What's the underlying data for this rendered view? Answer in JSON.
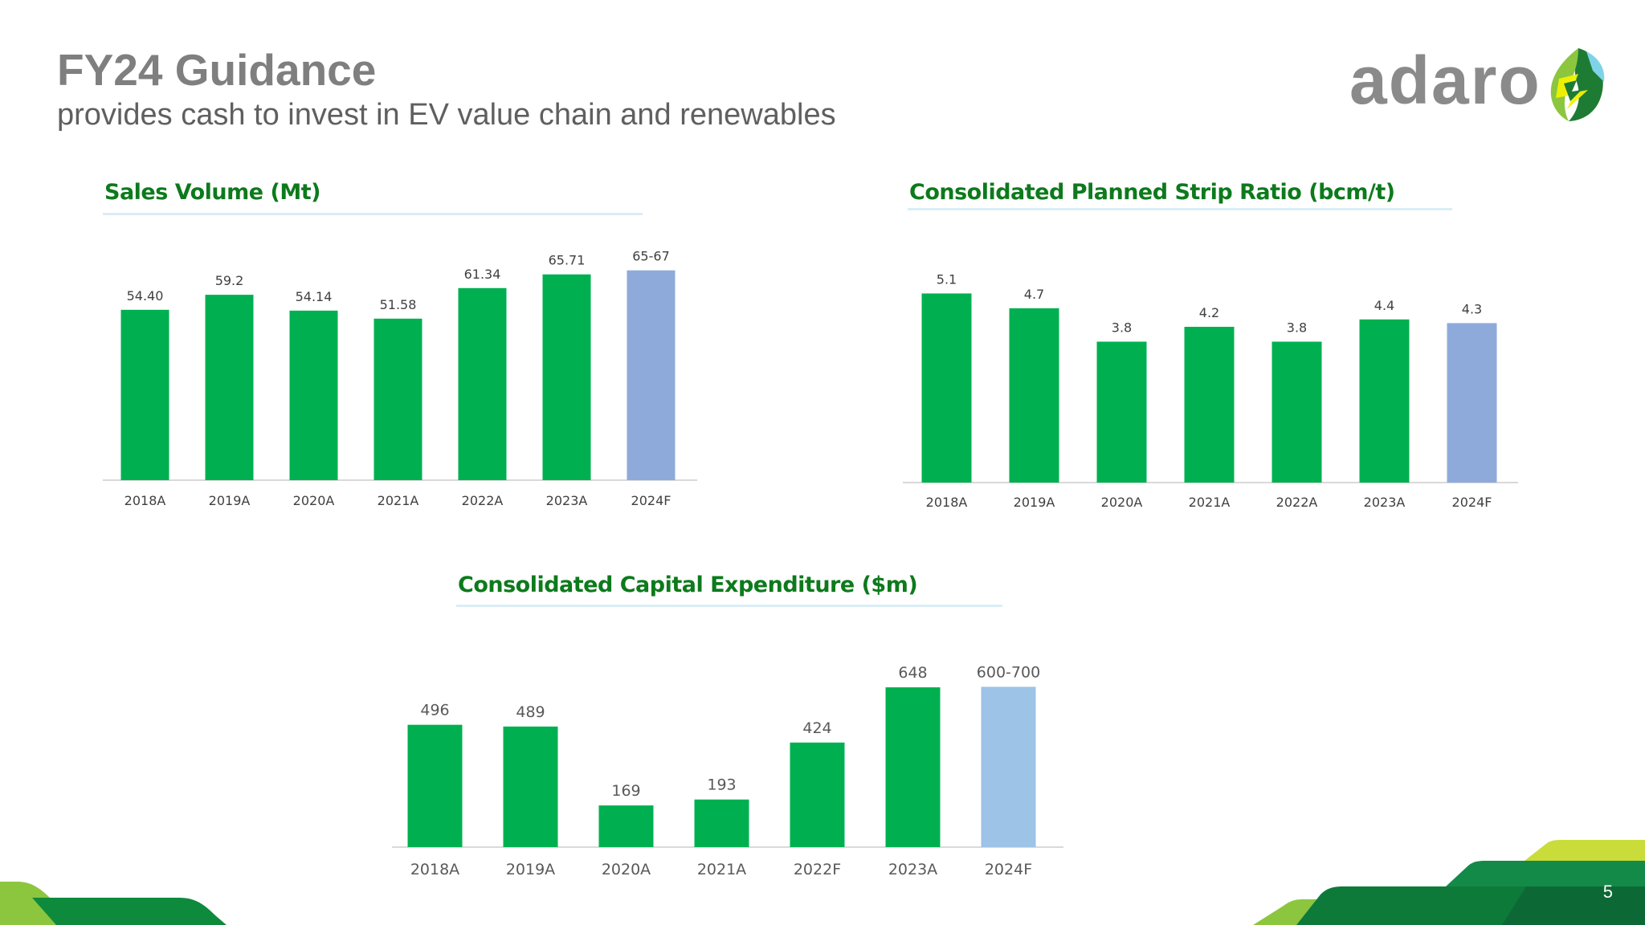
{
  "header": {
    "title": "FY24 Guidance",
    "subtitle": "provides cash to invest in EV value chain and renewables"
  },
  "logo": {
    "text": "adaro",
    "mark_icon": "adaro-leaf-logo-icon"
  },
  "colors": {
    "actual": "#00b050",
    "forecast_sales_strip": "#8eaadb",
    "forecast_capex": "#9dc3e6",
    "title_green": "#0d7a1c"
  },
  "page_number": "5",
  "chart_data": [
    {
      "id": "sales",
      "type": "bar",
      "title": "Sales Volume (Mt)",
      "categories": [
        "2018A",
        "2019A",
        "2020A",
        "2021A",
        "2022A",
        "2023A",
        "2024F"
      ],
      "values": [
        54.4,
        59.2,
        54.14,
        51.58,
        61.34,
        65.71,
        67
      ],
      "value_labels": [
        "54.40",
        "59.2",
        "54.14",
        "51.58",
        "61.34",
        "65.71",
        "65-67"
      ],
      "forecast": [
        false,
        false,
        false,
        false,
        false,
        false,
        true
      ],
      "ylim": [
        0,
        70
      ],
      "xlabel": "",
      "ylabel": "",
      "grid": false,
      "legend": "none"
    },
    {
      "id": "strip",
      "type": "bar",
      "title": "Consolidated Planned Strip Ratio (bcm/t)",
      "categories": [
        "2018A",
        "2019A",
        "2020A",
        "2021A",
        "2022A",
        "2023A",
        "2024F"
      ],
      "values": [
        5.1,
        4.7,
        3.8,
        4.2,
        3.8,
        4.4,
        4.3
      ],
      "value_labels": [
        "5.1",
        "4.7",
        "3.8",
        "4.2",
        "3.8",
        "4.4",
        "4.3"
      ],
      "forecast": [
        false,
        false,
        false,
        false,
        false,
        false,
        true
      ],
      "ylim": [
        0,
        5.5
      ],
      "xlabel": "",
      "ylabel": "",
      "grid": false,
      "legend": "none"
    },
    {
      "id": "capex",
      "type": "bar",
      "title": "Consolidated Capital Expenditure ($m)",
      "categories": [
        "2018A",
        "2019A",
        "2020A",
        "2021A",
        "2022F",
        "2023A",
        "2024F"
      ],
      "values": [
        496,
        489,
        169,
        193,
        424,
        648,
        650
      ],
      "value_labels": [
        "496",
        "489",
        "169",
        "193",
        "424",
        "648",
        "600-700"
      ],
      "forecast": [
        false,
        false,
        false,
        false,
        false,
        false,
        true
      ],
      "ylim": [
        0,
        700
      ],
      "xlabel": "",
      "ylabel": "",
      "grid": false,
      "legend": "none"
    }
  ]
}
